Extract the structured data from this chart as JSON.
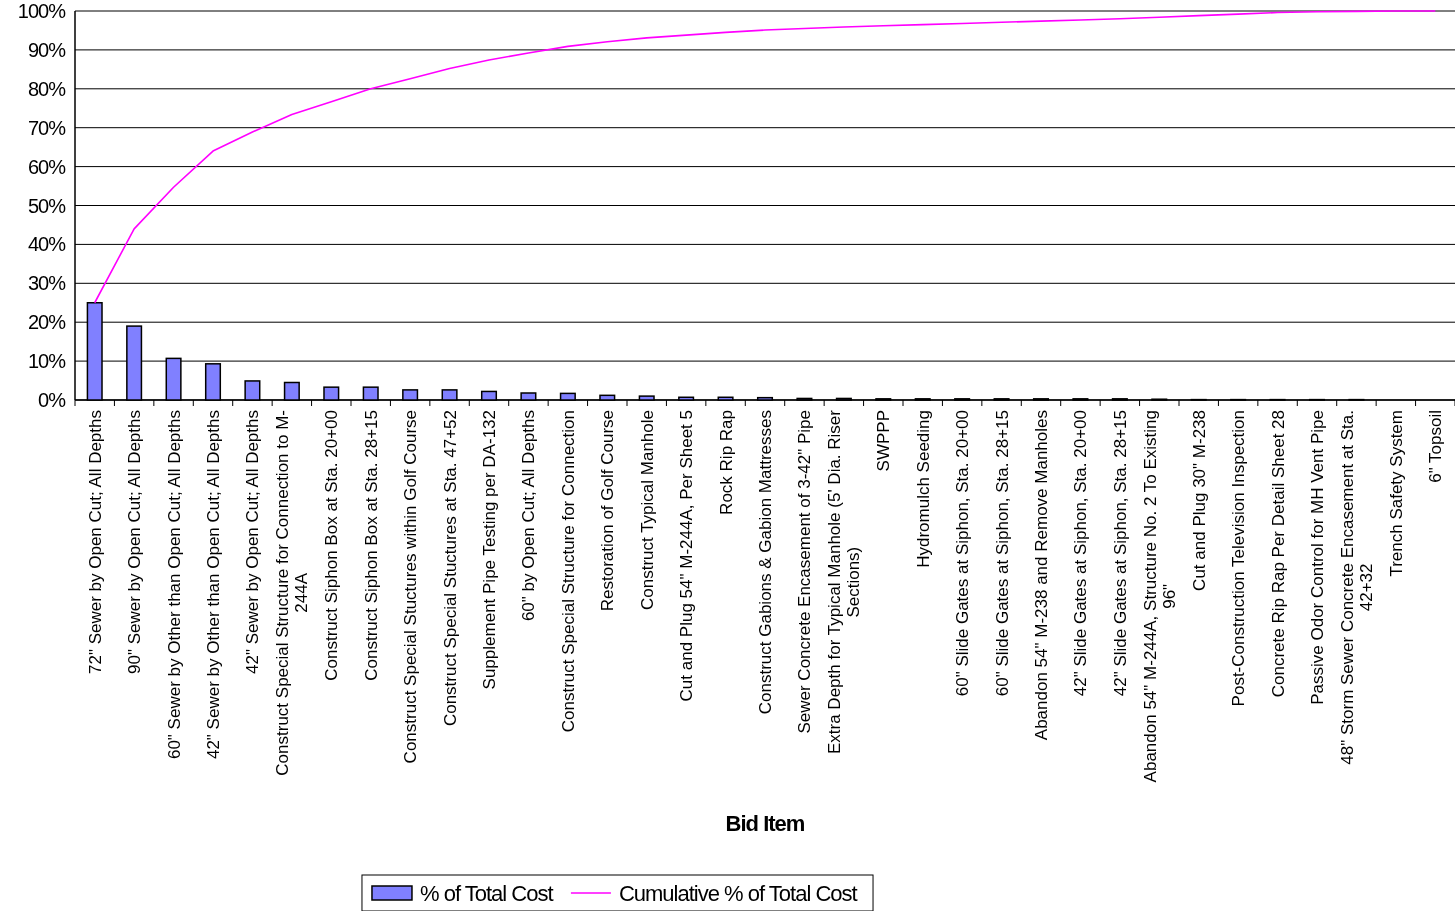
{
  "chart_data": {
    "type": "bar",
    "xlabel": "Bid Item",
    "categories": [
      "72\" Sewer by Open Cut; All Depths",
      "90\" Sewer by Open Cut; All Depths",
      "60\" Sewer by Other than Open Cut; All Depths",
      "42\" Sewer by Other than Open Cut; All Depths",
      "42\" Sewer by Open Cut; All Depths",
      "Construct Special Structure for Connection to M-244A",
      "Construct Siphon Box at Sta. 20+00",
      "Construct Siphon Box at Sta. 28+15",
      "Construct Special Stuctures within Golf Course",
      "Construct Special Stuctures at Sta. 47+52",
      "Supplement Pipe Testing per DA-132",
      "60\" by Open Cut; All Depths",
      "Construct Special Structure for Connection",
      "Restoration of Golf Course",
      "Construct Typical Manhole",
      "Cut and Plug 54\" M-244A, Per Sheet 5",
      "Rock Rip Rap",
      "Construct Gabions & Gabion Mattresses",
      "Sewer Concrete Encasement of 3-42\" Pipe",
      "Extra Depth for Typical Manhole (5' Dia. Riser Sections)",
      "SWPPP",
      "Hydromulch Seeding",
      "60\" Slide Gates at Siphon, Sta. 20+00",
      "60\" Slide Gates at Siphon, Sta. 28+15",
      "Abandon 54\" M-238 and Remove Manholes",
      "42\" Slide Gates at Siphon, Sta. 20+00",
      "42\" Slide Gates at Siphon, Sta. 28+15",
      "Abandon 54\" M-244A, Structure No. 2 To Existing 96\"",
      "Cut and Plug 30\" M-238",
      "Post-Construction Television Inspection",
      "Concrete Rip Rap Per Detail Sheet 28",
      "Passive Odor Control for MH Vent Pipe",
      "48\" Storm Sewer Concrete Encasement at Sta. 42+32",
      "Trench Safety System",
      "6\" Topsoil"
    ],
    "series": [
      {
        "name": "% of Total Cost",
        "color": "#8080ff",
        "values": [
          25,
          19,
          10.7,
          9.3,
          4.9,
          4.5,
          3.3,
          3.3,
          2.6,
          2.6,
          2.2,
          1.8,
          1.7,
          1.2,
          1.0,
          0.7,
          0.7,
          0.6,
          0.4,
          0.4,
          0.3,
          0.3,
          0.3,
          0.3,
          0.3,
          0.3,
          0.3,
          0.2,
          0.1,
          0.1,
          0.1,
          0.1,
          0.1,
          0,
          0
        ]
      },
      {
        "name": "Cumulative % of Total Cost",
        "type": "line",
        "color": "#ff00ff",
        "values": [
          25,
          44,
          54.7,
          64,
          68.9,
          73.4,
          76.7,
          80,
          82.6,
          85.2,
          87.4,
          89.2,
          90.9,
          92.1,
          93.1,
          93.8,
          94.5,
          95.1,
          95.5,
          95.9,
          96.2,
          96.5,
          96.8,
          97.1,
          97.4,
          97.7,
          98,
          98.4,
          98.8,
          99.2,
          99.6,
          99.8,
          99.9,
          100,
          100
        ]
      }
    ],
    "ylim": [
      0,
      100
    ],
    "yticks": [
      {
        "value": 0,
        "label": "0%"
      },
      {
        "value": 10,
        "label": "10%"
      },
      {
        "value": 20,
        "label": "20%"
      },
      {
        "value": 30,
        "label": "30%"
      },
      {
        "value": 40,
        "label": "40%"
      },
      {
        "value": 50,
        "label": "50%"
      },
      {
        "value": 60,
        "label": "60%"
      },
      {
        "value": 70,
        "label": "70%"
      },
      {
        "value": 80,
        "label": "80%"
      },
      {
        "value": 90,
        "label": "90%"
      },
      {
        "value": 100,
        "label": "100%"
      }
    ],
    "grid": "y",
    "legend": "bottom",
    "marker": "none"
  }
}
